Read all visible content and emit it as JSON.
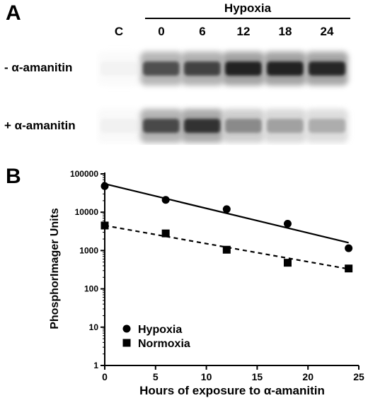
{
  "panel_a": {
    "letter": "A",
    "group_title": "Hypoxia",
    "lanes": [
      "C",
      "0",
      "6",
      "12",
      "18",
      "24"
    ],
    "rows": [
      {
        "label": "- α-amanitin",
        "intensity": [
          0.05,
          0.75,
          0.8,
          0.95,
          0.95,
          0.92
        ]
      },
      {
        "label": "+ α-amanitin",
        "intensity": [
          0.06,
          0.78,
          0.88,
          0.5,
          0.4,
          0.35
        ]
      }
    ]
  },
  "panel_b": {
    "letter": "B"
  },
  "chart_data": {
    "type": "scatter",
    "xlabel": "Hours of exposure to α-amanitin",
    "ylabel": "PhosphorImager Units",
    "xlim": [
      0,
      25
    ],
    "ylim": [
      1,
      100000
    ],
    "yscale": "log",
    "x_ticks": [
      "0",
      "5",
      "10",
      "15",
      "20",
      "25"
    ],
    "y_ticks": [
      "1",
      "10",
      "100",
      "1000",
      "10000",
      "100000"
    ],
    "legend_position": "bottom-left",
    "series": [
      {
        "name": "Hypoxia",
        "marker": "circle",
        "line": "solid",
        "x": [
          0,
          6,
          12,
          18,
          24
        ],
        "y": [
          48000,
          21000,
          12000,
          5000,
          1150
        ],
        "fit": {
          "x": [
            0,
            24
          ],
          "y": [
            55000,
            1600
          ]
        }
      },
      {
        "name": "Normoxia",
        "marker": "square",
        "line": "dashed",
        "x": [
          0,
          6,
          12,
          18,
          24
        ],
        "y": [
          4500,
          2800,
          1050,
          480,
          340
        ],
        "fit": {
          "x": [
            0,
            24
          ],
          "y": [
            4500,
            330
          ]
        }
      }
    ]
  }
}
